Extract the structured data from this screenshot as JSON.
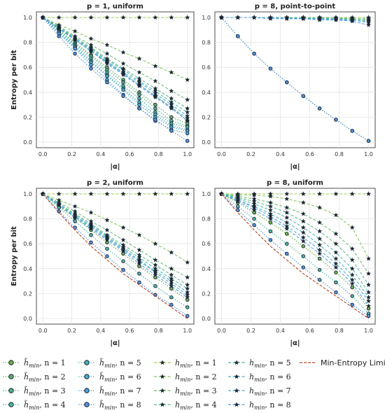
{
  "chart_data": [
    {
      "type": "line",
      "title": "p = 1, uniform",
      "xlabel": "|α|",
      "ylabel": "Entropy per bit",
      "xlim": [
        0,
        1
      ],
      "ylim": [
        0,
        1
      ],
      "xticks": [
        "0.0",
        "0.2",
        "0.4",
        "0.6",
        "0.8",
        "1.0"
      ],
      "yticks": [
        "0.0",
        "0.2",
        "0.4",
        "0.6",
        "0.8",
        "1.0"
      ],
      "x": [
        0,
        0.111,
        0.222,
        0.333,
        0.444,
        0.556,
        0.667,
        0.778,
        0.889,
        1.0
      ],
      "series": [
        {
          "name": "h_min, n = 1",
          "values": [
            1,
            1,
            1,
            1,
            1,
            1,
            1,
            1,
            1,
            1
          ]
        },
        {
          "name": "h_min, n = 2",
          "values": [
            1,
            0.94,
            0.89,
            0.83,
            0.78,
            0.72,
            0.67,
            0.61,
            0.56,
            0.5
          ]
        },
        {
          "name": "h_min, n = 3",
          "values": [
            1,
            0.93,
            0.85,
            0.78,
            0.71,
            0.63,
            0.56,
            0.49,
            0.41,
            0.34
          ]
        },
        {
          "name": "h_min, n = 4",
          "values": [
            1,
            0.92,
            0.84,
            0.76,
            0.67,
            0.59,
            0.51,
            0.43,
            0.35,
            0.27
          ]
        },
        {
          "name": "h_min, n = 5",
          "values": [
            1,
            0.92,
            0.83,
            0.75,
            0.66,
            0.58,
            0.49,
            0.41,
            0.32,
            0.24
          ]
        },
        {
          "name": "h_min, n = 6",
          "values": [
            1,
            0.91,
            0.83,
            0.74,
            0.65,
            0.56,
            0.48,
            0.39,
            0.3,
            0.21
          ]
        },
        {
          "name": "h_min, n = 7",
          "values": [
            1,
            0.91,
            0.82,
            0.73,
            0.64,
            0.55,
            0.46,
            0.37,
            0.28,
            0.19
          ]
        },
        {
          "name": "h_min, n = 8",
          "values": [
            1,
            0.91,
            0.82,
            0.73,
            0.63,
            0.54,
            0.45,
            0.36,
            0.27,
            0.17
          ]
        },
        {
          "name": "h̃_min, n = 1",
          "values": [
            1,
            0.91,
            0.82,
            0.73,
            0.64,
            0.55,
            0.46,
            0.37,
            0.28,
            0.17
          ]
        },
        {
          "name": "h̃_min, n = 2",
          "values": [
            1,
            0.9,
            0.8,
            0.7,
            0.6,
            0.5,
            0.4,
            0.3,
            0.2,
            0.15
          ]
        },
        {
          "name": "h̃_min, n = 3",
          "values": [
            1,
            0.9,
            0.79,
            0.69,
            0.58,
            0.48,
            0.38,
            0.27,
            0.17,
            0.13
          ]
        },
        {
          "name": "h̃_min, n = 4",
          "values": [
            1,
            0.89,
            0.78,
            0.67,
            0.56,
            0.45,
            0.35,
            0.24,
            0.15,
            0.12
          ]
        },
        {
          "name": "h̃_min, n = 5",
          "values": [
            1,
            0.88,
            0.77,
            0.65,
            0.54,
            0.43,
            0.32,
            0.22,
            0.13,
            0.1
          ]
        },
        {
          "name": "h̃_min, n = 6",
          "values": [
            1,
            0.88,
            0.76,
            0.64,
            0.53,
            0.42,
            0.3,
            0.2,
            0.12,
            0.09
          ]
        },
        {
          "name": "h̃_min, n = 7",
          "values": [
            1,
            0.87,
            0.75,
            0.62,
            0.5,
            0.38,
            0.27,
            0.17,
            0.1,
            0.07
          ]
        },
        {
          "name": "h̃_min, n = 8",
          "values": [
            1,
            0.85,
            0.71,
            0.59,
            0.48,
            0.37,
            0.27,
            0.18,
            0.09,
            0.01
          ]
        }
      ]
    },
    {
      "type": "line",
      "title": "p = 8, point-to-point",
      "xlabel": "|α|",
      "ylabel": "",
      "xlim": [
        0,
        1
      ],
      "ylim": [
        0,
        1
      ],
      "xticks": [
        "0.0",
        "0.2",
        "0.4",
        "0.6",
        "0.8",
        "1.0"
      ],
      "yticks": [
        "0.0",
        "0.2",
        "0.4",
        "0.6",
        "0.8",
        "1.0"
      ],
      "x": [
        0,
        0.111,
        0.222,
        0.333,
        0.444,
        0.556,
        0.667,
        0.778,
        0.889,
        1.0
      ],
      "series": [
        {
          "name": "h_min, n = 1",
          "values": [
            1,
            1,
            1,
            1,
            1,
            1,
            1,
            1,
            1,
            1
          ]
        },
        {
          "name": "h_min, n = 2",
          "values": [
            1,
            1,
            1,
            1,
            1,
            1,
            1,
            1,
            0.99,
            0.99
          ]
        },
        {
          "name": "h_min, n = 3",
          "values": [
            1,
            1,
            1,
            1,
            1,
            1,
            1,
            0.99,
            0.99,
            0.98
          ]
        },
        {
          "name": "h_min, n = 4",
          "values": [
            1,
            1,
            1,
            1,
            1,
            1,
            0.99,
            0.99,
            0.99,
            0.98
          ]
        },
        {
          "name": "h_min, n = 5",
          "values": [
            1,
            1,
            1,
            1,
            1,
            0.99,
            0.99,
            0.99,
            0.98,
            0.97
          ]
        },
        {
          "name": "h_min, n = 6",
          "values": [
            1,
            1,
            1,
            1,
            0.99,
            0.99,
            0.99,
            0.99,
            0.98,
            0.97
          ]
        },
        {
          "name": "h_min, n = 7",
          "values": [
            1,
            1,
            1,
            1,
            0.99,
            0.99,
            0.99,
            0.98,
            0.98,
            0.96
          ]
        },
        {
          "name": "h_min, n = 8",
          "values": [
            1,
            1,
            1,
            0.99,
            0.99,
            0.99,
            0.98,
            0.98,
            0.97,
            0.94
          ]
        },
        {
          "name": "h̃_min, n = 1",
          "values": [
            1,
            0.85,
            0.71,
            0.59,
            0.48,
            0.37,
            0.27,
            0.18,
            0.09,
            0.01
          ]
        },
        {
          "name": "h̃_min, n = 8",
          "values": [
            1,
            0.85,
            0.71,
            0.59,
            0.48,
            0.37,
            0.27,
            0.18,
            0.09,
            0.01
          ]
        }
      ]
    },
    {
      "type": "line",
      "title": "p = 2, uniform",
      "xlabel": "|α|",
      "ylabel": "Entropy per bit",
      "xlim": [
        0,
        1
      ],
      "ylim": [
        0,
        1
      ],
      "xticks": [
        "0.0",
        "0.2",
        "0.4",
        "0.6",
        "0.8",
        "1.0"
      ],
      "yticks": [
        "0.0",
        "0.2",
        "0.4",
        "0.6",
        "0.8",
        "1.0"
      ],
      "x": [
        0,
        0.111,
        0.222,
        0.333,
        0.444,
        0.556,
        0.667,
        0.778,
        0.889,
        1.0
      ],
      "series": [
        {
          "name": "h_min, n = 1",
          "values": [
            1,
            1,
            1,
            1,
            1,
            1,
            1,
            1,
            1,
            1
          ]
        },
        {
          "name": "h_min, n = 2",
          "values": [
            1,
            0.95,
            0.9,
            0.85,
            0.79,
            0.73,
            0.67,
            0.6,
            0.53,
            0.45
          ]
        },
        {
          "name": "h_min, n = 3",
          "values": [
            1,
            0.93,
            0.86,
            0.78,
            0.71,
            0.63,
            0.55,
            0.47,
            0.4,
            0.33
          ]
        },
        {
          "name": "h_min, n = 4",
          "values": [
            1,
            0.92,
            0.84,
            0.76,
            0.67,
            0.59,
            0.51,
            0.43,
            0.35,
            0.27
          ]
        },
        {
          "name": "h_min, n = 5",
          "values": [
            1,
            0.92,
            0.83,
            0.75,
            0.66,
            0.57,
            0.49,
            0.4,
            0.32,
            0.24
          ]
        },
        {
          "name": "h_min, n = 6",
          "values": [
            1,
            0.91,
            0.82,
            0.74,
            0.65,
            0.56,
            0.47,
            0.38,
            0.3,
            0.21
          ]
        },
        {
          "name": "h_min, n = 7",
          "values": [
            1,
            0.91,
            0.82,
            0.73,
            0.64,
            0.55,
            0.46,
            0.37,
            0.28,
            0.19
          ]
        },
        {
          "name": "h_min, n = 8",
          "values": [
            1,
            0.91,
            0.81,
            0.72,
            0.63,
            0.54,
            0.44,
            0.35,
            0.26,
            0.17
          ]
        },
        {
          "name": "h̃_min, n = 1",
          "values": [
            1,
            0.9,
            0.81,
            0.71,
            0.61,
            0.52,
            0.42,
            0.33,
            0.24,
            0.15
          ]
        },
        {
          "name": "h̃_min, n = 4",
          "values": [
            1,
            0.89,
            0.78,
            0.67,
            0.56,
            0.46,
            0.36,
            0.26,
            0.17,
            0.09
          ]
        },
        {
          "name": "h̃_min, n = 8",
          "values": [
            1,
            0.86,
            0.73,
            0.61,
            0.5,
            0.39,
            0.29,
            0.19,
            0.11,
            0.02
          ]
        },
        {
          "name": "Min-Entropy Limit",
          "values": [
            1,
            0.85,
            0.71,
            0.58,
            0.47,
            0.36,
            0.27,
            0.18,
            0.09,
            0.0
          ]
        }
      ]
    },
    {
      "type": "line",
      "title": "p = 8, uniform",
      "xlabel": "|α|",
      "ylabel": "",
      "xlim": [
        0,
        1
      ],
      "ylim": [
        0,
        1
      ],
      "xticks": [
        "0.0",
        "0.2",
        "0.4",
        "0.6",
        "0.8",
        "1.0"
      ],
      "yticks": [
        "0.0",
        "0.2",
        "0.4",
        "0.6",
        "0.8",
        "1.0"
      ],
      "x": [
        0,
        0.111,
        0.222,
        0.333,
        0.444,
        0.556,
        0.667,
        0.778,
        0.889,
        1.0
      ],
      "series": [
        {
          "name": "h_min, n = 1",
          "values": [
            1,
            1,
            1,
            1,
            1,
            1,
            1,
            1,
            1,
            1
          ]
        },
        {
          "name": "h_min, n = 2",
          "values": [
            1,
            0.99,
            0.99,
            0.98,
            0.96,
            0.93,
            0.89,
            0.83,
            0.73,
            0.48
          ]
        },
        {
          "name": "h_min, n = 3",
          "values": [
            1,
            0.98,
            0.96,
            0.93,
            0.89,
            0.84,
            0.77,
            0.68,
            0.56,
            0.36
          ]
        },
        {
          "name": "h_min, n = 4",
          "values": [
            1,
            0.97,
            0.94,
            0.9,
            0.85,
            0.78,
            0.7,
            0.6,
            0.47,
            0.27
          ]
        },
        {
          "name": "h_min, n = 5",
          "values": [
            1,
            0.96,
            0.92,
            0.87,
            0.81,
            0.73,
            0.64,
            0.53,
            0.4,
            0.21
          ]
        },
        {
          "name": "h_min, n = 6",
          "values": [
            1,
            0.95,
            0.9,
            0.84,
            0.77,
            0.69,
            0.59,
            0.48,
            0.35,
            0.17
          ]
        },
        {
          "name": "h_min, n = 7",
          "values": [
            1,
            0.95,
            0.89,
            0.82,
            0.74,
            0.65,
            0.55,
            0.44,
            0.31,
            0.14
          ]
        },
        {
          "name": "h_min, n = 8",
          "values": [
            1,
            0.94,
            0.87,
            0.8,
            0.72,
            0.62,
            0.52,
            0.41,
            0.28,
            0.1
          ]
        },
        {
          "name": "h̃_min, n = 1",
          "values": [
            1,
            0.93,
            0.85,
            0.77,
            0.68,
            0.58,
            0.48,
            0.37,
            0.25,
            0.08
          ]
        },
        {
          "name": "h̃_min, n = 4",
          "values": [
            1,
            0.9,
            0.8,
            0.7,
            0.6,
            0.5,
            0.39,
            0.29,
            0.18,
            0.04
          ]
        },
        {
          "name": "h̃_min, n = 8",
          "values": [
            1,
            0.87,
            0.75,
            0.63,
            0.52,
            0.41,
            0.31,
            0.21,
            0.11,
            0.02
          ]
        },
        {
          "name": "Min-Entropy Limit",
          "values": [
            1,
            0.85,
            0.71,
            0.58,
            0.47,
            0.36,
            0.27,
            0.18,
            0.09,
            0.0
          ]
        }
      ]
    }
  ],
  "legend": {
    "placement": "bottom",
    "entries": [
      {
        "label_base": "h̃",
        "label_sub": "min",
        "label_n": ", n = 1",
        "marker": "circle",
        "color": "#6ab04c"
      },
      {
        "label_base": "h̃",
        "label_sub": "min",
        "label_n": ", n = 2",
        "marker": "circle",
        "color": "#5fae6a"
      },
      {
        "label_base": "h̃",
        "label_sub": "min",
        "label_n": ", n = 3",
        "marker": "circle",
        "color": "#56b08a"
      },
      {
        "label_base": "h̃",
        "label_sub": "min",
        "label_n": ", n = 4",
        "marker": "circle",
        "color": "#4fb4a6"
      },
      {
        "label_base": "h̃",
        "label_sub": "min",
        "label_n": ", n = 5",
        "marker": "circle",
        "color": "#49b3bd"
      },
      {
        "label_base": "h̃",
        "label_sub": "min",
        "label_n": ", n = 6",
        "marker": "circle",
        "color": "#47aed0"
      },
      {
        "label_base": "h̃",
        "label_sub": "min",
        "label_n": ", n = 7",
        "marker": "circle",
        "color": "#4aa3dd"
      },
      {
        "label_base": "h̃",
        "label_sub": "min",
        "label_n": ", n = 8",
        "marker": "circle",
        "color": "#5293e0"
      },
      {
        "label_base": "h",
        "label_sub": "min",
        "label_n": ", n = 1",
        "marker": "star",
        "color": "#9ccc4a"
      },
      {
        "label_base": "h",
        "label_sub": "min",
        "label_n": ", n = 2",
        "marker": "star",
        "color": "#7ec25a"
      },
      {
        "label_base": "h",
        "label_sub": "min",
        "label_n": ", n = 3",
        "marker": "star",
        "color": "#62b86e"
      },
      {
        "label_base": "h",
        "label_sub": "min",
        "label_n": ", n = 4",
        "marker": "star",
        "color": "#4fb489"
      },
      {
        "label_base": "h",
        "label_sub": "min",
        "label_n": ", n = 5",
        "marker": "star",
        "color": "#46b3a8"
      },
      {
        "label_base": "h",
        "label_sub": "min",
        "label_n": ", n = 6",
        "marker": "star",
        "color": "#45aec4"
      },
      {
        "label_base": "h",
        "label_sub": "min",
        "label_n": ", n = 7",
        "marker": "star",
        "color": "#47a6d6"
      },
      {
        "label_base": "h",
        "label_sub": "min",
        "label_n": ", n = 8",
        "marker": "star",
        "color": "#4e98df"
      },
      {
        "label_base": "Min-Entropy Limit",
        "label_sub": "",
        "label_n": "",
        "marker": "line",
        "color": "#b5462a"
      }
    ]
  },
  "colors": {
    "star_series": [
      "#9ccc4a",
      "#7ec25a",
      "#62b86e",
      "#4fb489",
      "#46b3a8",
      "#45aec4",
      "#47a6d6",
      "#4e98df"
    ],
    "circle_series": [
      "#6ab04c",
      "#5fae6a",
      "#56b08a",
      "#4fb4a6",
      "#49b3bd",
      "#47aed0",
      "#4aa3dd",
      "#5293e0"
    ],
    "limit": "#b5462a",
    "grid": "#e4e4e4",
    "marker_edge": "#1c2533"
  }
}
